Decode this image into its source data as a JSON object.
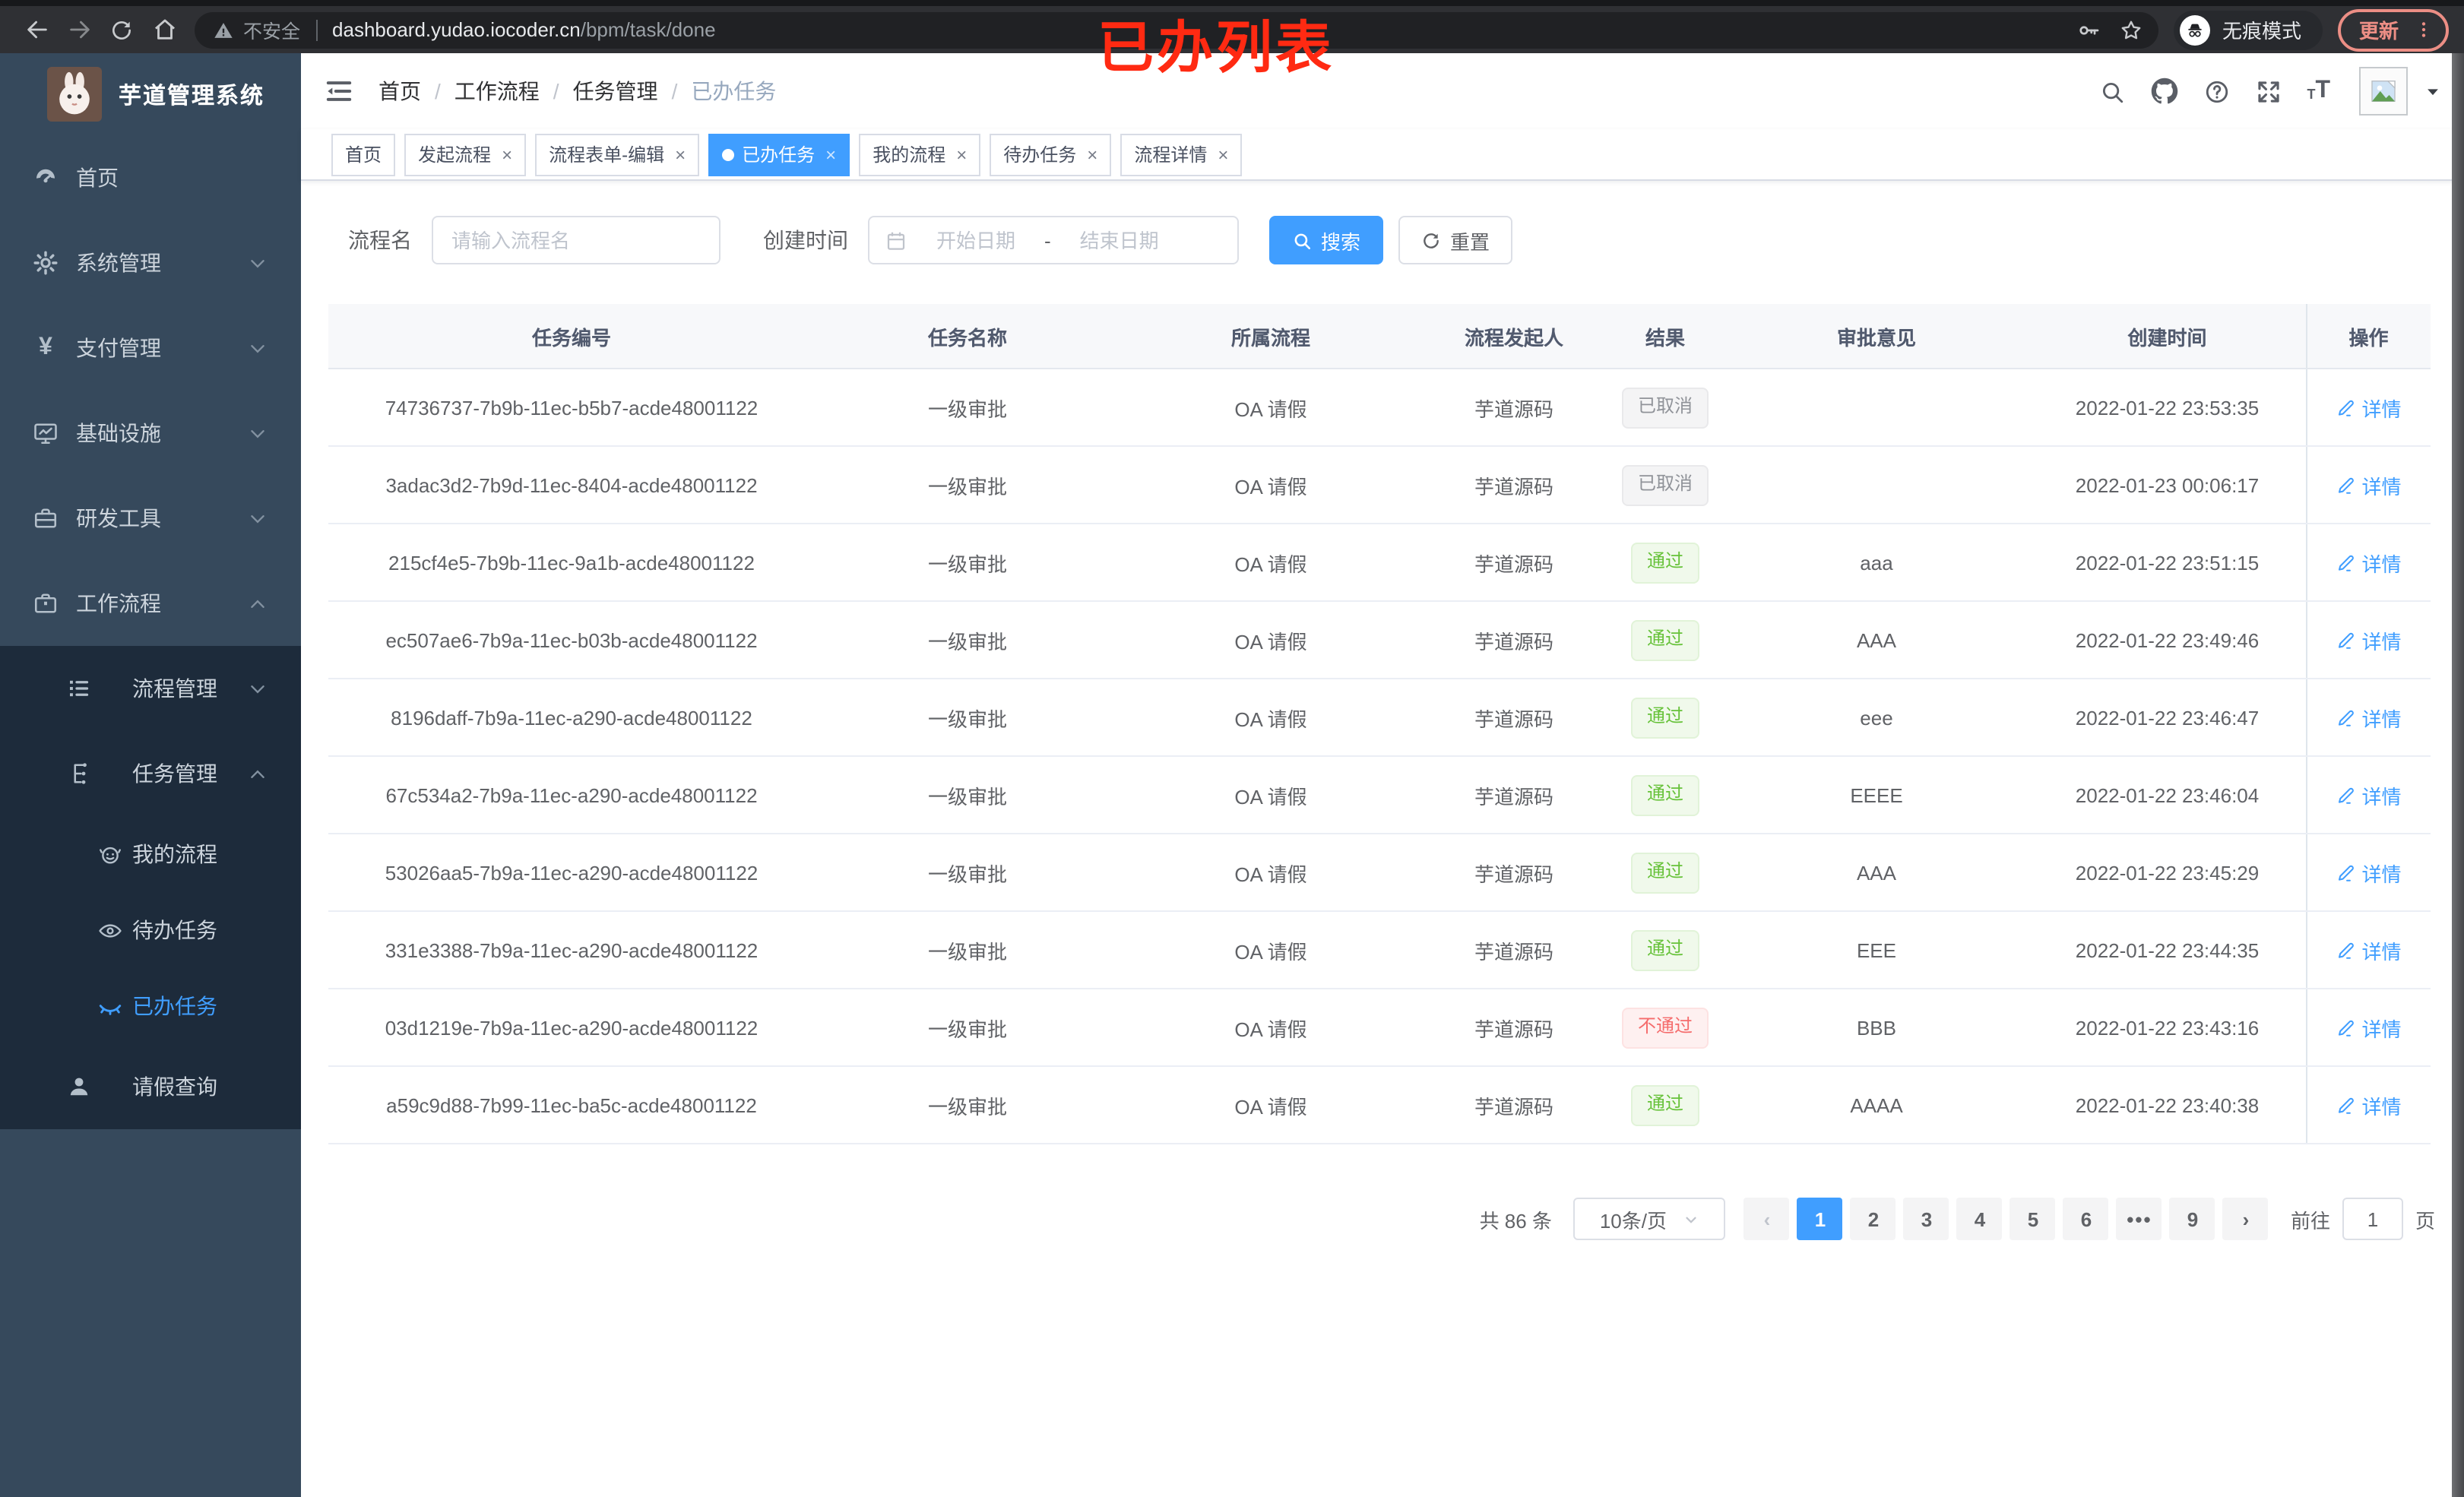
{
  "browser": {
    "security_warning": "不安全",
    "url_host": "dashboard.yudao.iocoder.cn",
    "url_path": "/bpm/task/done",
    "incognito_label": "无痕模式",
    "update_label": "更新"
  },
  "annotation": {
    "text": "已办列表"
  },
  "colors": {
    "accent": "#409eff",
    "success": "#67c23a",
    "danger": "#f56c6c",
    "info": "#909399",
    "sidebar_bg": "#36495c",
    "submenu_bg": "#1d2b3b",
    "annotation": "#ff2a12"
  },
  "sidebar": {
    "title": "芋道管理系统",
    "menu": [
      {
        "label": "首页",
        "icon": "dashboard-icon",
        "level": 1,
        "insub": false,
        "active": false,
        "chevron": ""
      },
      {
        "label": "系统管理",
        "icon": "gear-icon",
        "level": 1,
        "insub": false,
        "active": false,
        "chevron": "down"
      },
      {
        "label": "支付管理",
        "icon": "yen-icon",
        "level": 1,
        "insub": false,
        "active": false,
        "chevron": "down"
      },
      {
        "label": "基础设施",
        "icon": "monitor-icon",
        "level": 1,
        "insub": false,
        "active": false,
        "chevron": "down"
      },
      {
        "label": "研发工具",
        "icon": "toolbox-icon",
        "level": 1,
        "insub": false,
        "active": false,
        "chevron": "down"
      },
      {
        "label": "工作流程",
        "icon": "briefcase-icon",
        "level": 1,
        "insub": false,
        "active": false,
        "chevron": "up"
      },
      {
        "label": "流程管理",
        "icon": "list-icon",
        "level": 2,
        "insub": true,
        "active": false,
        "chevron": "down"
      },
      {
        "label": "任务管理",
        "icon": "tree-icon",
        "level": 2,
        "insub": true,
        "active": false,
        "chevron": "up"
      },
      {
        "label": "我的流程",
        "icon": "face-icon",
        "level": 3,
        "insub": true,
        "active": false,
        "chevron": ""
      },
      {
        "label": "待办任务",
        "icon": "eye-icon",
        "level": 3,
        "insub": true,
        "active": false,
        "chevron": ""
      },
      {
        "label": "已办任务",
        "icon": "eye-closed-icon",
        "level": 3,
        "insub": true,
        "active": true,
        "chevron": ""
      },
      {
        "label": "请假查询",
        "icon": "user-icon",
        "level": 2,
        "insub": true,
        "active": false,
        "chevron": ""
      }
    ]
  },
  "breadcrumb": {
    "items": [
      "首页",
      "工作流程",
      "任务管理",
      "已办任务"
    ],
    "separator": "/"
  },
  "tabs": [
    {
      "label": "首页",
      "closable": false,
      "active": false
    },
    {
      "label": "发起流程",
      "closable": true,
      "active": false
    },
    {
      "label": "流程表单-编辑",
      "closable": true,
      "active": false
    },
    {
      "label": "已办任务",
      "closable": true,
      "active": true
    },
    {
      "label": "我的流程",
      "closable": true,
      "active": false
    },
    {
      "label": "待办任务",
      "closable": true,
      "active": false
    },
    {
      "label": "流程详情",
      "closable": true,
      "active": false
    }
  ],
  "filters": {
    "name_label": "流程名",
    "name_placeholder": "请输入流程名",
    "time_label": "创建时间",
    "start_placeholder": "开始日期",
    "range_separator": "-",
    "end_placeholder": "结束日期",
    "search_label": "搜索",
    "reset_label": "重置"
  },
  "table": {
    "headers": [
      "任务编号",
      "任务名称",
      "所属流程",
      "流程发起人",
      "结果",
      "审批意见",
      "创建时间",
      "操作"
    ],
    "detail_label": "详情",
    "rows": [
      {
        "id": "74736737-7b9b-11ec-b5b7-acde48001122",
        "name": "一级审批",
        "process": "OA 请假",
        "starter": "芋道源码",
        "result": "已取消",
        "result_type": "info",
        "comment": "",
        "time": "2022-01-22 23:53:35"
      },
      {
        "id": "3adac3d2-7b9d-11ec-8404-acde48001122",
        "name": "一级审批",
        "process": "OA 请假",
        "starter": "芋道源码",
        "result": "已取消",
        "result_type": "info",
        "comment": "",
        "time": "2022-01-23 00:06:17"
      },
      {
        "id": "215cf4e5-7b9b-11ec-9a1b-acde48001122",
        "name": "一级审批",
        "process": "OA 请假",
        "starter": "芋道源码",
        "result": "通过",
        "result_type": "success",
        "comment": "aaa",
        "time": "2022-01-22 23:51:15"
      },
      {
        "id": "ec507ae6-7b9a-11ec-b03b-acde48001122",
        "name": "一级审批",
        "process": "OA 请假",
        "starter": "芋道源码",
        "result": "通过",
        "result_type": "success",
        "comment": "AAA",
        "time": "2022-01-22 23:49:46"
      },
      {
        "id": "8196daff-7b9a-11ec-a290-acde48001122",
        "name": "一级审批",
        "process": "OA 请假",
        "starter": "芋道源码",
        "result": "通过",
        "result_type": "success",
        "comment": "eee",
        "time": "2022-01-22 23:46:47"
      },
      {
        "id": "67c534a2-7b9a-11ec-a290-acde48001122",
        "name": "一级审批",
        "process": "OA 请假",
        "starter": "芋道源码",
        "result": "通过",
        "result_type": "success",
        "comment": "EEEE",
        "time": "2022-01-22 23:46:04"
      },
      {
        "id": "53026aa5-7b9a-11ec-a290-acde48001122",
        "name": "一级审批",
        "process": "OA 请假",
        "starter": "芋道源码",
        "result": "通过",
        "result_type": "success",
        "comment": "AAA",
        "time": "2022-01-22 23:45:29"
      },
      {
        "id": "331e3388-7b9a-11ec-a290-acde48001122",
        "name": "一级审批",
        "process": "OA 请假",
        "starter": "芋道源码",
        "result": "通过",
        "result_type": "success",
        "comment": "EEE",
        "time": "2022-01-22 23:44:35"
      },
      {
        "id": "03d1219e-7b9a-11ec-a290-acde48001122",
        "name": "一级审批",
        "process": "OA 请假",
        "starter": "芋道源码",
        "result": "不通过",
        "result_type": "danger",
        "comment": "BBB",
        "time": "2022-01-22 23:43:16"
      },
      {
        "id": "a59c9d88-7b99-11ec-ba5c-acde48001122",
        "name": "一级审批",
        "process": "OA 请假",
        "starter": "芋道源码",
        "result": "通过",
        "result_type": "success",
        "comment": "AAAA",
        "time": "2022-01-22 23:40:38"
      }
    ]
  },
  "pagination": {
    "total": "共 86 条",
    "page_size": "10条/页",
    "prev": "‹",
    "next": "›",
    "pages": [
      "1",
      "2",
      "3",
      "4",
      "5",
      "6",
      "•••",
      "9"
    ],
    "active": "1",
    "goto_label": "前往",
    "goto_value": "1",
    "page_unit": "页"
  }
}
